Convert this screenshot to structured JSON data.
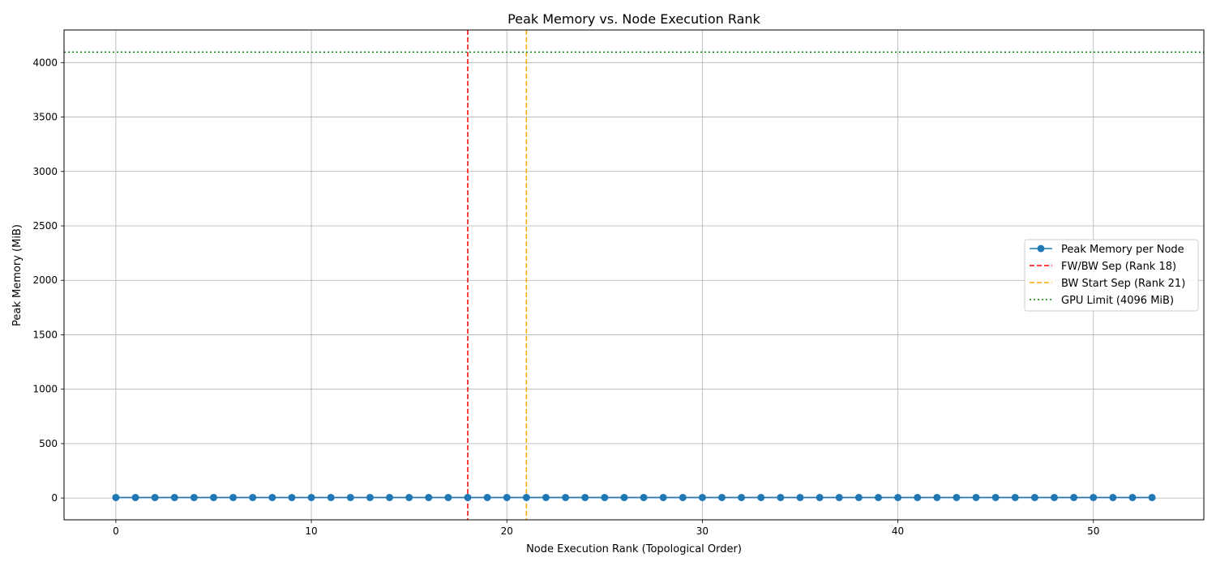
{
  "chart_data": {
    "type": "line",
    "title": "Peak Memory vs. Node Execution Rank",
    "xlabel": "Node Execution Rank (Topological Order)",
    "ylabel": "Peak Memory (MiB)",
    "xlim": [
      -2.65,
      55.65
    ],
    "ylim": [
      -200,
      4300
    ],
    "x_ticks": [
      0,
      10,
      20,
      30,
      40,
      50
    ],
    "y_ticks": [
      0,
      500,
      1000,
      1500,
      2000,
      2500,
      3000,
      3500,
      4000
    ],
    "grid": true,
    "legend_position": "center-right",
    "series": [
      {
        "name": "Peak Memory per Node",
        "color": "#1f77b4",
        "marker": "circle",
        "x": [
          0,
          1,
          2,
          3,
          4,
          5,
          6,
          7,
          8,
          9,
          10,
          11,
          12,
          13,
          14,
          15,
          16,
          17,
          18,
          19,
          20,
          21,
          22,
          23,
          24,
          25,
          26,
          27,
          28,
          29,
          30,
          31,
          32,
          33,
          34,
          35,
          36,
          37,
          38,
          39,
          40,
          41,
          42,
          43,
          44,
          45,
          46,
          47,
          48,
          49,
          50,
          51,
          52,
          53
        ],
        "values": [
          5,
          5,
          5,
          5,
          5,
          5,
          5,
          5,
          5,
          5,
          5,
          5,
          5,
          5,
          5,
          5,
          5,
          5,
          5,
          5,
          5,
          5,
          5,
          5,
          5,
          5,
          5,
          5,
          5,
          5,
          5,
          5,
          5,
          5,
          5,
          5,
          5,
          5,
          5,
          5,
          5,
          5,
          5,
          5,
          5,
          5,
          5,
          5,
          5,
          5,
          5,
          5,
          5,
          5
        ]
      }
    ],
    "reference_lines": [
      {
        "name": "FW/BW Sep (Rank 18)",
        "orientation": "vertical",
        "value": 18,
        "color": "#ff0000",
        "style": "dashed"
      },
      {
        "name": "BW Start Sep (Rank 21)",
        "orientation": "vertical",
        "value": 21,
        "color": "#ffa500",
        "style": "dashed"
      },
      {
        "name": "GPU Limit (4096 MiB)",
        "orientation": "horizontal",
        "value": 4096,
        "color": "#008000",
        "style": "dotted"
      }
    ]
  }
}
